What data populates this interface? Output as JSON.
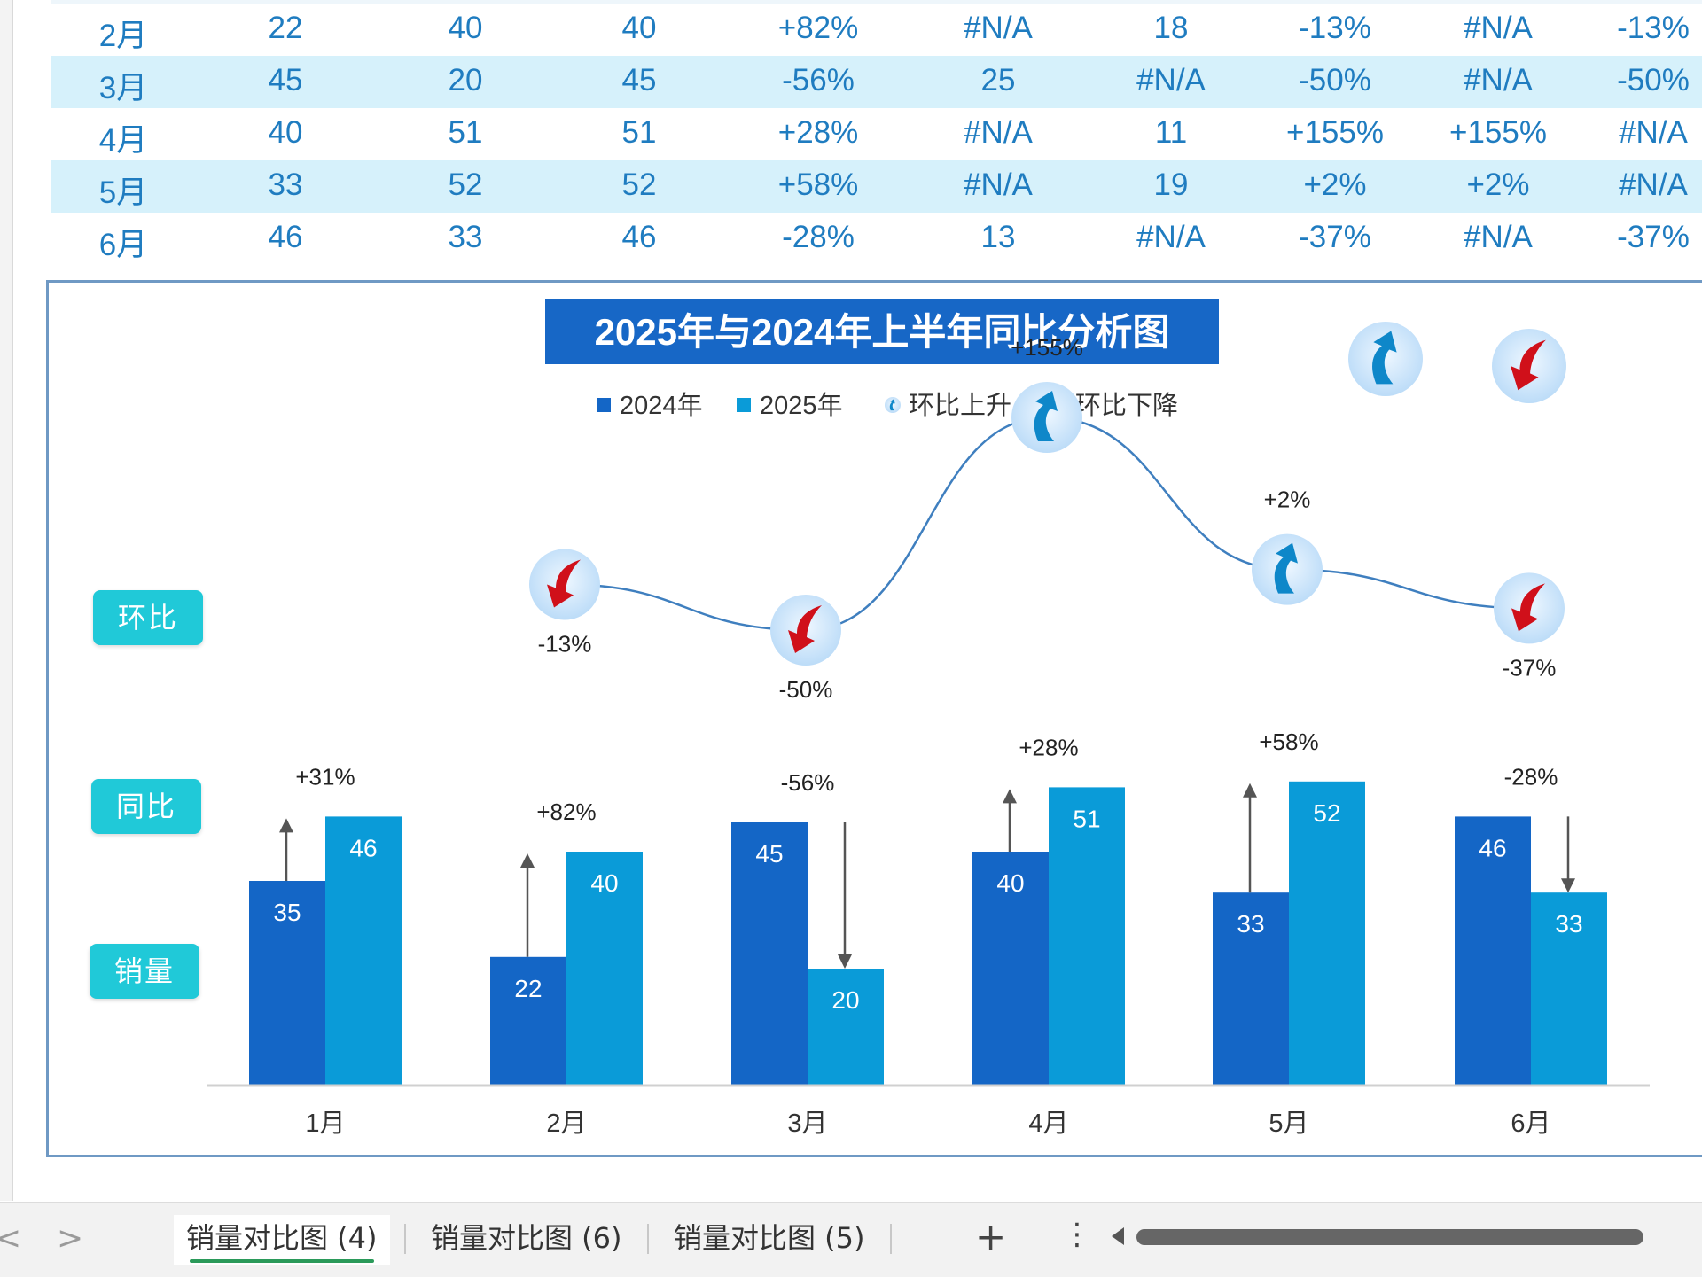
{
  "table": {
    "rows": [
      {
        "month": "2月",
        "v2024": "22",
        "v2025": "40",
        "max": "40",
        "yoy": "+82%",
        "c6": "#N/A",
        "c7": "18",
        "mom": "-13%",
        "up": "#N/A",
        "down": "-13%"
      },
      {
        "month": "3月",
        "v2024": "45",
        "v2025": "20",
        "max": "45",
        "yoy": "-56%",
        "c6": "25",
        "c7": "#N/A",
        "mom": "-50%",
        "up": "#N/A",
        "down": "-50%"
      },
      {
        "month": "4月",
        "v2024": "40",
        "v2025": "51",
        "max": "51",
        "yoy": "+28%",
        "c6": "#N/A",
        "c7": "11",
        "mom": "+155%",
        "up": "+155%",
        "down": "#N/A"
      },
      {
        "month": "5月",
        "v2024": "33",
        "v2025": "52",
        "max": "52",
        "yoy": "+58%",
        "c6": "#N/A",
        "c7": "19",
        "mom": "+2%",
        "up": "+2%",
        "down": "#N/A"
      },
      {
        "month": "6月",
        "v2024": "46",
        "v2025": "33",
        "max": "46",
        "yoy": "-28%",
        "c6": "13",
        "c7": "#N/A",
        "mom": "-37%",
        "up": "#N/A",
        "down": "-37%"
      }
    ]
  },
  "side_labels": {
    "mom": "环比",
    "yoy": "同比",
    "sales": "销量"
  },
  "colors": {
    "bar2024": "#1466c6",
    "bar2025": "#0a9bd8",
    "title_bg": "#1767c6",
    "label_bg": "#20c9d8",
    "line": "#3f7fbf",
    "up_arrow": "#0e87c9",
    "down_arrow": "#d0101a",
    "bubble": "#cfe6fb"
  },
  "chart_data": {
    "type": "bar",
    "title": "2025年与2024年上半年同比分析图",
    "categories": [
      "1月",
      "2月",
      "3月",
      "4月",
      "5月",
      "6月"
    ],
    "series": [
      {
        "name": "2024年",
        "values": [
          35,
          22,
          45,
          40,
          33,
          46
        ]
      },
      {
        "name": "2025年",
        "values": [
          46,
          40,
          20,
          51,
          52,
          33
        ]
      }
    ],
    "yoy_labels": [
      "+31%",
      "+82%",
      "-56%",
      "+28%",
      "+58%",
      "-28%"
    ],
    "mom": {
      "categories": [
        "2月",
        "3月",
        "4月",
        "5月",
        "6月"
      ],
      "labels": [
        "-13%",
        "-50%",
        "+155%",
        "+2%",
        "-37%"
      ],
      "values": [
        -13,
        -50,
        155,
        2,
        -37
      ]
    },
    "legend": [
      "2024年",
      "2025年",
      "环比上升",
      "环比下降"
    ],
    "legend_position": "top",
    "ylim": [
      0,
      60
    ],
    "grid": false
  },
  "icons": {
    "up": "up-curved-arrow-icon",
    "down": "down-curved-arrow-icon"
  },
  "tabs": {
    "items": [
      "销量对比图 (4)",
      "销量对比图 (6)",
      "销量对比图 (5)"
    ],
    "active_index": 0,
    "add": "+",
    "menu": "⋮",
    "prev": "<",
    "next": ">"
  }
}
